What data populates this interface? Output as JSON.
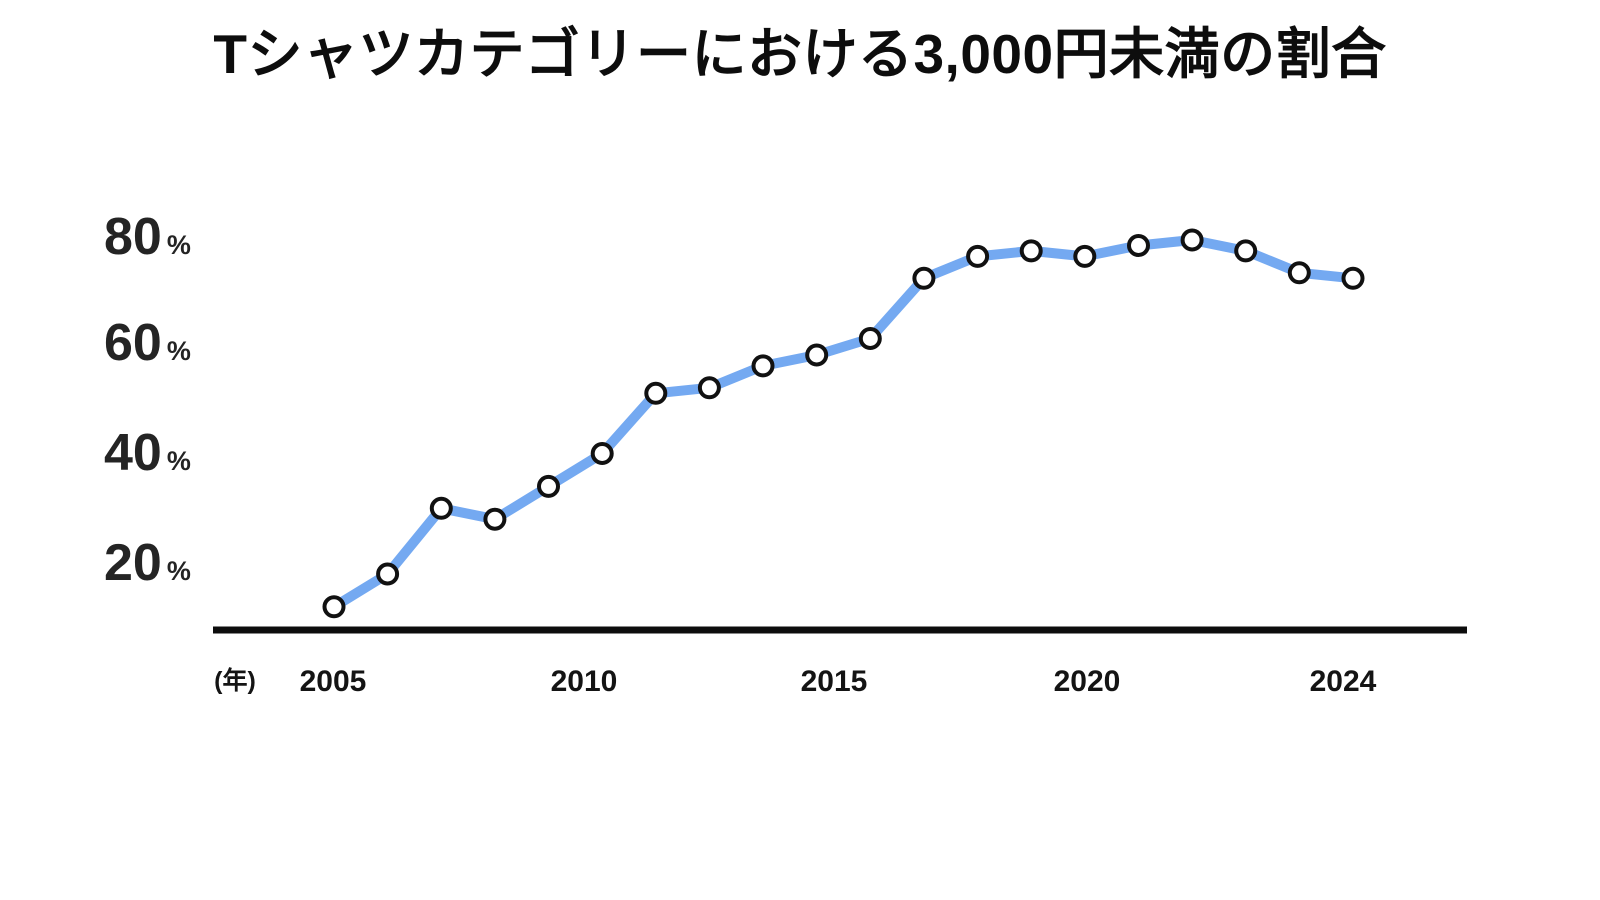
{
  "page": {
    "background": "#ffffff"
  },
  "title": "Tシャツカテゴリーにおける3,000円未満の割合",
  "y_axis": {
    "ticks": [
      {
        "number": "80",
        "suffix": "%"
      },
      {
        "number": "60",
        "suffix": "%"
      },
      {
        "number": "40",
        "suffix": "%"
      },
      {
        "number": "20",
        "suffix": "%"
      }
    ]
  },
  "x_axis": {
    "unit_label": "(年)",
    "ticks": [
      "2005",
      "2010",
      "2015",
      "2020",
      "2024"
    ]
  },
  "chart_data": {
    "type": "line",
    "title": "Tシャツカテゴリーにおける3,000円未満の割合",
    "xlabel": "(年)",
    "ylabel": "%",
    "x": [
      2005,
      2006,
      2007,
      2008,
      2009,
      2010,
      2011,
      2012,
      2013,
      2014,
      2015,
      2016,
      2017,
      2018,
      2019,
      2020,
      2021,
      2022,
      2023,
      2024
    ],
    "values": [
      12,
      18,
      30,
      28,
      34,
      40,
      51,
      52,
      56,
      58,
      61,
      72,
      76,
      77,
      76,
      78,
      79,
      77,
      73,
      72
    ],
    "x_tick_labels": [
      "2005",
      "2010",
      "2015",
      "2020",
      "2024"
    ],
    "y_tick_values": [
      20,
      40,
      60,
      80
    ],
    "ylim": [
      8,
      86
    ],
    "grid": false,
    "legend": false,
    "marker": "open-circle",
    "colors": {
      "line": "#74A9F1",
      "marker_fill": "#FFFFFF",
      "marker_stroke": "#111111",
      "axis": "#0D0D0D",
      "text": "#1C1C1C"
    }
  }
}
